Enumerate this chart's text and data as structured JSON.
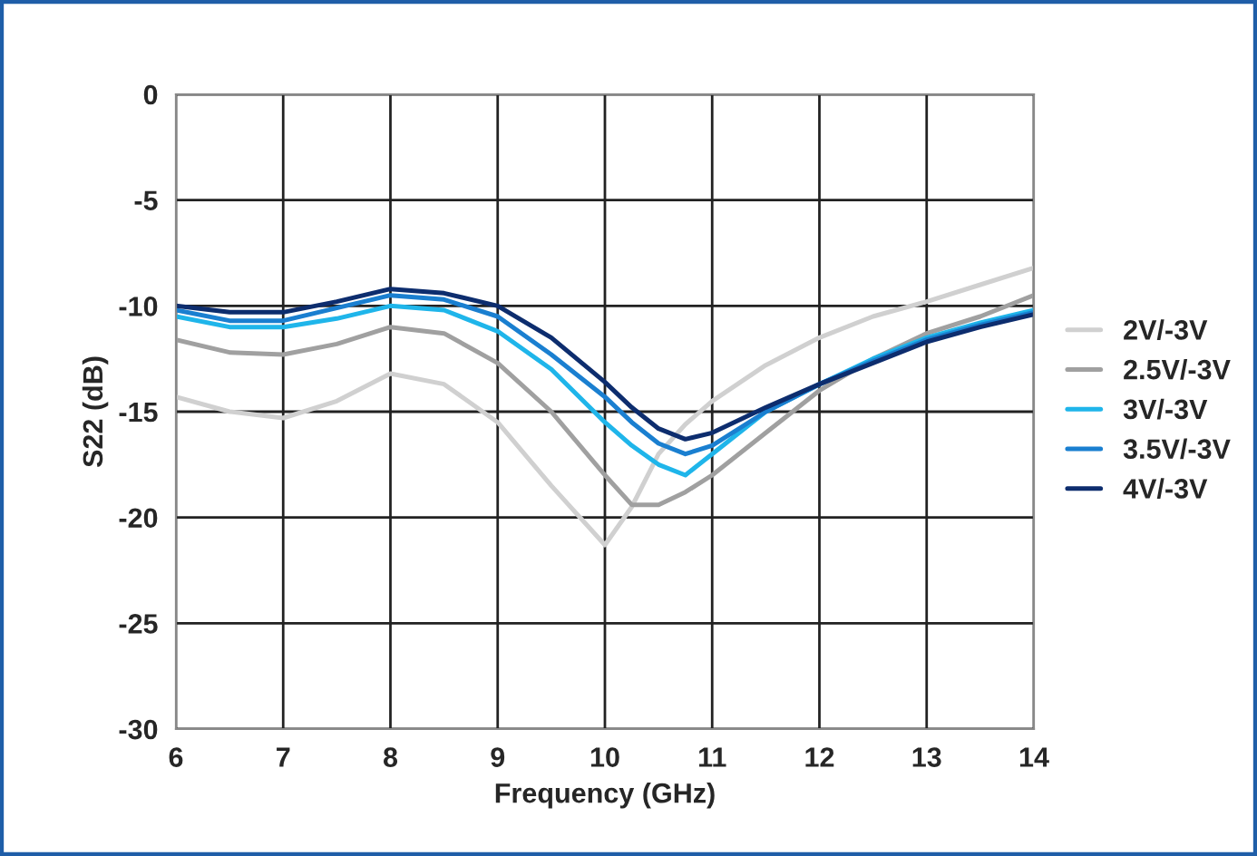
{
  "chart_data": {
    "type": "line",
    "xlabel": "Frequency (GHz)",
    "ylabel": "S22 (dB)",
    "xlim": [
      6,
      14
    ],
    "xticks": [
      6,
      7,
      8,
      9,
      10,
      11,
      12,
      13,
      14
    ],
    "ylim": [
      -30,
      0
    ],
    "yticks": [
      -30,
      -25,
      -20,
      -15,
      -10,
      -5,
      0
    ],
    "grid": true,
    "legend": "right",
    "marker": "none",
    "line_style": "solid",
    "x": [
      6,
      6.5,
      7,
      7.5,
      8,
      8.5,
      9,
      9.5,
      10,
      10.25,
      10.5,
      10.75,
      11,
      11.5,
      12,
      12.5,
      13,
      13.5,
      14
    ],
    "series": [
      {
        "name": "2V/-3V",
        "color": "#d0d0d0",
        "values": [
          -14.3,
          -15,
          -15.3,
          -14.5,
          -13.2,
          -13.7,
          -15.5,
          -18.5,
          -21.3,
          -19.5,
          -17,
          -15.6,
          -14.5,
          -12.8,
          -11.5,
          -10.5,
          -9.8,
          -9,
          -8.2
        ]
      },
      {
        "name": "2.5V/-3V",
        "color": "#a0a0a0",
        "values": [
          -11.6,
          -12.2,
          -12.3,
          -11.8,
          -11,
          -11.3,
          -12.7,
          -15,
          -18,
          -19.4,
          -19.4,
          -18.8,
          -18,
          -16,
          -14,
          -12.5,
          -11.3,
          -10.5,
          -9.5
        ]
      },
      {
        "name": "3V/-3V",
        "color": "#1fb5ea",
        "values": [
          -10.5,
          -11,
          -11,
          -10.6,
          -10,
          -10.2,
          -11.2,
          -13,
          -15.5,
          -16.6,
          -17.5,
          -18,
          -17,
          -15,
          -13.7,
          -12.5,
          -11.5,
          -10.8,
          -10.2
        ]
      },
      {
        "name": "3.5V/-3V",
        "color": "#1a7fd0",
        "values": [
          -10.2,
          -10.7,
          -10.7,
          -10.1,
          -9.5,
          -9.7,
          -10.5,
          -12.3,
          -14.3,
          -15.5,
          -16.5,
          -17,
          -16.6,
          -15,
          -13.7,
          -12.6,
          -11.6,
          -10.9,
          -10.3
        ]
      },
      {
        "name": "4V/-3V",
        "color": "#0d2d6e",
        "values": [
          -10,
          -10.3,
          -10.3,
          -9.8,
          -9.2,
          -9.4,
          -10,
          -11.5,
          -13.6,
          -14.8,
          -15.8,
          -16.3,
          -16,
          -14.8,
          -13.7,
          -12.7,
          -11.7,
          -11,
          -10.4
        ]
      }
    ]
  }
}
